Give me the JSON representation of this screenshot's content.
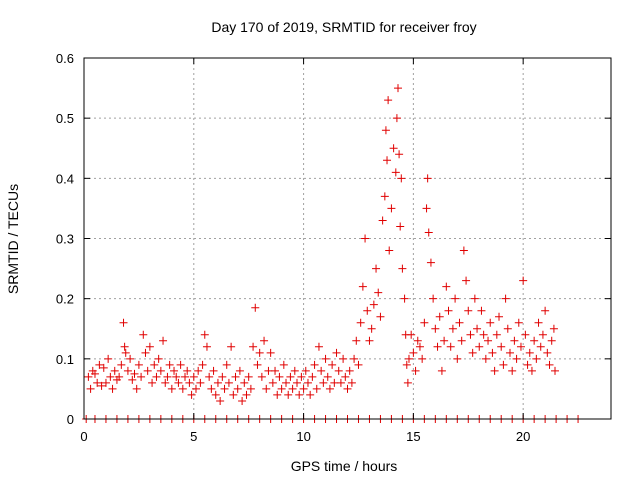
{
  "chart_data": {
    "type": "scatter",
    "title": "Day 170 of 2019, SRMTID for receiver froy",
    "xlabel": "GPS time / hours",
    "ylabel": "SRMTID / TECUs",
    "xlim": [
      0,
      24
    ],
    "ylim": [
      0,
      0.6
    ],
    "x_ticks": [
      0,
      5,
      10,
      15,
      20
    ],
    "x_tick_labels": [
      "0",
      "5",
      "10",
      "15",
      "20"
    ],
    "y_ticks": [
      0,
      0.1,
      0.2,
      0.3,
      0.4,
      0.5,
      0.6
    ],
    "y_tick_labels": [
      "0",
      "0.1",
      "0.2",
      "0.3",
      "0.4",
      "0.5",
      "0.6"
    ],
    "grid": true,
    "marker": "+",
    "colors": {
      "points": "#e00000",
      "grid": "#a0a0a0",
      "axes": "#000000"
    },
    "series": [
      {
        "name": "SRMTID",
        "points": [
          [
            0.2,
            0.07
          ],
          [
            0.3,
            0.05
          ],
          [
            0.4,
            0.08
          ],
          [
            0.5,
            0.075
          ],
          [
            0.6,
            0.06
          ],
          [
            0.7,
            0.09
          ],
          [
            0.8,
            0.055
          ],
          [
            0.9,
            0.085
          ],
          [
            1.0,
            0.06
          ],
          [
            1.1,
            0.1
          ],
          [
            1.2,
            0.07
          ],
          [
            1.3,
            0.05
          ],
          [
            1.4,
            0.08
          ],
          [
            1.5,
            0.065
          ],
          [
            1.6,
            0.07
          ],
          [
            1.7,
            0.09
          ],
          [
            1.8,
            0.16
          ],
          [
            1.85,
            0.12
          ],
          [
            1.9,
            0.11
          ],
          [
            2.0,
            0.08
          ],
          [
            2.1,
            0.1
          ],
          [
            2.2,
            0.065
          ],
          [
            2.3,
            0.075
          ],
          [
            2.4,
            0.05
          ],
          [
            2.5,
            0.09
          ],
          [
            2.6,
            0.07
          ],
          [
            2.7,
            0.14
          ],
          [
            2.8,
            0.11
          ],
          [
            2.9,
            0.08
          ],
          [
            3.0,
            0.12
          ],
          [
            3.1,
            0.06
          ],
          [
            3.2,
            0.09
          ],
          [
            3.3,
            0.07
          ],
          [
            3.4,
            0.1
          ],
          [
            3.5,
            0.08
          ],
          [
            3.6,
            0.13
          ],
          [
            3.7,
            0.06
          ],
          [
            3.8,
            0.07
          ],
          [
            3.9,
            0.09
          ],
          [
            4.0,
            0.05
          ],
          [
            4.1,
            0.08
          ],
          [
            4.2,
            0.07
          ],
          [
            4.3,
            0.06
          ],
          [
            4.4,
            0.09
          ],
          [
            4.5,
            0.05
          ],
          [
            4.6,
            0.07
          ],
          [
            4.7,
            0.08
          ],
          [
            4.8,
            0.06
          ],
          [
            4.9,
            0.04
          ],
          [
            5.0,
            0.07
          ],
          [
            5.1,
            0.05
          ],
          [
            5.2,
            0.08
          ],
          [
            5.3,
            0.06
          ],
          [
            5.4,
            0.09
          ],
          [
            5.5,
            0.14
          ],
          [
            5.6,
            0.12
          ],
          [
            5.7,
            0.07
          ],
          [
            5.8,
            0.05
          ],
          [
            5.9,
            0.08
          ],
          [
            6.0,
            0.04
          ],
          [
            6.1,
            0.06
          ],
          [
            6.2,
            0.03
          ],
          [
            6.3,
            0.07
          ],
          [
            6.4,
            0.05
          ],
          [
            6.5,
            0.09
          ],
          [
            6.6,
            0.06
          ],
          [
            6.7,
            0.12
          ],
          [
            6.8,
            0.04
          ],
          [
            6.9,
            0.07
          ],
          [
            7.0,
            0.05
          ],
          [
            7.1,
            0.08
          ],
          [
            7.2,
            0.03
          ],
          [
            7.3,
            0.06
          ],
          [
            7.4,
            0.04
          ],
          [
            7.5,
            0.07
          ],
          [
            7.6,
            0.05
          ],
          [
            7.7,
            0.12
          ],
          [
            7.8,
            0.185
          ],
          [
            7.9,
            0.09
          ],
          [
            8.0,
            0.11
          ],
          [
            8.1,
            0.07
          ],
          [
            8.2,
            0.13
          ],
          [
            8.3,
            0.05
          ],
          [
            8.4,
            0.08
          ],
          [
            8.5,
            0.11
          ],
          [
            8.6,
            0.06
          ],
          [
            8.7,
            0.08
          ],
          [
            8.8,
            0.04
          ],
          [
            8.9,
            0.07
          ],
          [
            9.0,
            0.05
          ],
          [
            9.1,
            0.09
          ],
          [
            9.2,
            0.06
          ],
          [
            9.3,
            0.04
          ],
          [
            9.4,
            0.07
          ],
          [
            9.5,
            0.05
          ],
          [
            9.6,
            0.08
          ],
          [
            9.7,
            0.06
          ],
          [
            9.8,
            0.04
          ],
          [
            9.9,
            0.07
          ],
          [
            10.0,
            0.05
          ],
          [
            10.1,
            0.08
          ],
          [
            10.2,
            0.06
          ],
          [
            10.3,
            0.04
          ],
          [
            10.4,
            0.07
          ],
          [
            10.5,
            0.09
          ],
          [
            10.6,
            0.05
          ],
          [
            10.7,
            0.12
          ],
          [
            10.8,
            0.08
          ],
          [
            10.9,
            0.06
          ],
          [
            11.0,
            0.1
          ],
          [
            11.1,
            0.07
          ],
          [
            11.2,
            0.05
          ],
          [
            11.3,
            0.09
          ],
          [
            11.4,
            0.06
          ],
          [
            11.5,
            0.11
          ],
          [
            11.6,
            0.08
          ],
          [
            11.7,
            0.06
          ],
          [
            11.8,
            0.1
          ],
          [
            11.9,
            0.07
          ],
          [
            12.0,
            0.05
          ],
          [
            12.1,
            0.08
          ],
          [
            12.2,
            0.06
          ],
          [
            12.3,
            0.1
          ],
          [
            12.4,
            0.13
          ],
          [
            12.5,
            0.09
          ],
          [
            12.6,
            0.16
          ],
          [
            12.7,
            0.22
          ],
          [
            12.8,
            0.3
          ],
          [
            12.9,
            0.18
          ],
          [
            13.0,
            0.13
          ],
          [
            13.1,
            0.15
          ],
          [
            13.2,
            0.19
          ],
          [
            13.3,
            0.25
          ],
          [
            13.4,
            0.21
          ],
          [
            13.5,
            0.17
          ],
          [
            13.6,
            0.33
          ],
          [
            13.7,
            0.37
          ],
          [
            13.75,
            0.48
          ],
          [
            13.8,
            0.43
          ],
          [
            13.85,
            0.53
          ],
          [
            13.9,
            0.28
          ],
          [
            14.0,
            0.35
          ],
          [
            14.1,
            0.45
          ],
          [
            14.2,
            0.41
          ],
          [
            14.25,
            0.5
          ],
          [
            14.3,
            0.55
          ],
          [
            14.35,
            0.44
          ],
          [
            14.4,
            0.32
          ],
          [
            14.45,
            0.4
          ],
          [
            14.5,
            0.25
          ],
          [
            14.6,
            0.2
          ],
          [
            14.65,
            0.14
          ],
          [
            14.7,
            0.09
          ],
          [
            14.75,
            0.06
          ],
          [
            14.8,
            0.1
          ],
          [
            14.9,
            0.14
          ],
          [
            15.0,
            0.11
          ],
          [
            15.1,
            0.08
          ],
          [
            15.2,
            0.13
          ],
          [
            15.3,
            0.12
          ],
          [
            15.4,
            0.1
          ],
          [
            15.5,
            0.16
          ],
          [
            15.6,
            0.35
          ],
          [
            15.65,
            0.4
          ],
          [
            15.7,
            0.31
          ],
          [
            15.8,
            0.26
          ],
          [
            15.9,
            0.2
          ],
          [
            16.0,
            0.15
          ],
          [
            16.1,
            0.12
          ],
          [
            16.2,
            0.17
          ],
          [
            16.3,
            0.08
          ],
          [
            16.4,
            0.13
          ],
          [
            16.5,
            0.22
          ],
          [
            16.6,
            0.18
          ],
          [
            16.7,
            0.12
          ],
          [
            16.8,
            0.15
          ],
          [
            16.9,
            0.2
          ],
          [
            17.0,
            0.1
          ],
          [
            17.1,
            0.16
          ],
          [
            17.2,
            0.13
          ],
          [
            17.3,
            0.28
          ],
          [
            17.4,
            0.23
          ],
          [
            17.5,
            0.18
          ],
          [
            17.6,
            0.14
          ],
          [
            17.7,
            0.11
          ],
          [
            17.8,
            0.2
          ],
          [
            17.9,
            0.15
          ],
          [
            18.0,
            0.12
          ],
          [
            18.1,
            0.18
          ],
          [
            18.2,
            0.14
          ],
          [
            18.3,
            0.1
          ],
          [
            18.4,
            0.13
          ],
          [
            18.5,
            0.16
          ],
          [
            18.6,
            0.11
          ],
          [
            18.7,
            0.08
          ],
          [
            18.8,
            0.14
          ],
          [
            18.9,
            0.17
          ],
          [
            19.0,
            0.12
          ],
          [
            19.1,
            0.09
          ],
          [
            19.2,
            0.2
          ],
          [
            19.3,
            0.15
          ],
          [
            19.4,
            0.11
          ],
          [
            19.5,
            0.08
          ],
          [
            19.6,
            0.13
          ],
          [
            19.7,
            0.1
          ],
          [
            19.8,
            0.16
          ],
          [
            19.9,
            0.12
          ],
          [
            20.0,
            0.23
          ],
          [
            20.1,
            0.14
          ],
          [
            20.2,
            0.09
          ],
          [
            20.3,
            0.11
          ],
          [
            20.4,
            0.08
          ],
          [
            20.5,
            0.13
          ],
          [
            20.6,
            0.1
          ],
          [
            20.7,
            0.16
          ],
          [
            20.8,
            0.12
          ],
          [
            20.9,
            0.14
          ],
          [
            21.0,
            0.18
          ],
          [
            21.1,
            0.11
          ],
          [
            21.2,
            0.09
          ],
          [
            21.3,
            0.13
          ],
          [
            21.4,
            0.15
          ],
          [
            21.45,
            0.08
          ],
          [
            0.1,
            0
          ],
          [
            0.5,
            0
          ],
          [
            1.0,
            0
          ],
          [
            1.5,
            0
          ],
          [
            2.0,
            0
          ],
          [
            2.5,
            0
          ],
          [
            3.0,
            0
          ],
          [
            3.5,
            0
          ],
          [
            4.0,
            0
          ],
          [
            4.5,
            0
          ],
          [
            5.0,
            0
          ],
          [
            5.5,
            0
          ],
          [
            6.0,
            0
          ],
          [
            6.5,
            0
          ],
          [
            7.0,
            0
          ],
          [
            7.5,
            0
          ],
          [
            8.0,
            0
          ],
          [
            8.5,
            0
          ],
          [
            9.0,
            0
          ],
          [
            9.5,
            0
          ],
          [
            10.0,
            0
          ],
          [
            10.5,
            0
          ],
          [
            11.0,
            0
          ],
          [
            11.5,
            0
          ],
          [
            12.0,
            0
          ],
          [
            12.5,
            0
          ],
          [
            13.0,
            0
          ],
          [
            13.5,
            0
          ],
          [
            14.0,
            0
          ],
          [
            14.5,
            0
          ],
          [
            15.0,
            0
          ],
          [
            15.5,
            0
          ],
          [
            16.0,
            0
          ],
          [
            16.5,
            0
          ],
          [
            17.0,
            0
          ],
          [
            17.5,
            0
          ],
          [
            18.0,
            0
          ],
          [
            18.5,
            0
          ],
          [
            19.0,
            0
          ],
          [
            19.5,
            0
          ],
          [
            20.0,
            0
          ],
          [
            20.5,
            0
          ],
          [
            21.0,
            0
          ],
          [
            21.5,
            0
          ],
          [
            22.0,
            0
          ],
          [
            22.5,
            0
          ]
        ]
      }
    ]
  }
}
